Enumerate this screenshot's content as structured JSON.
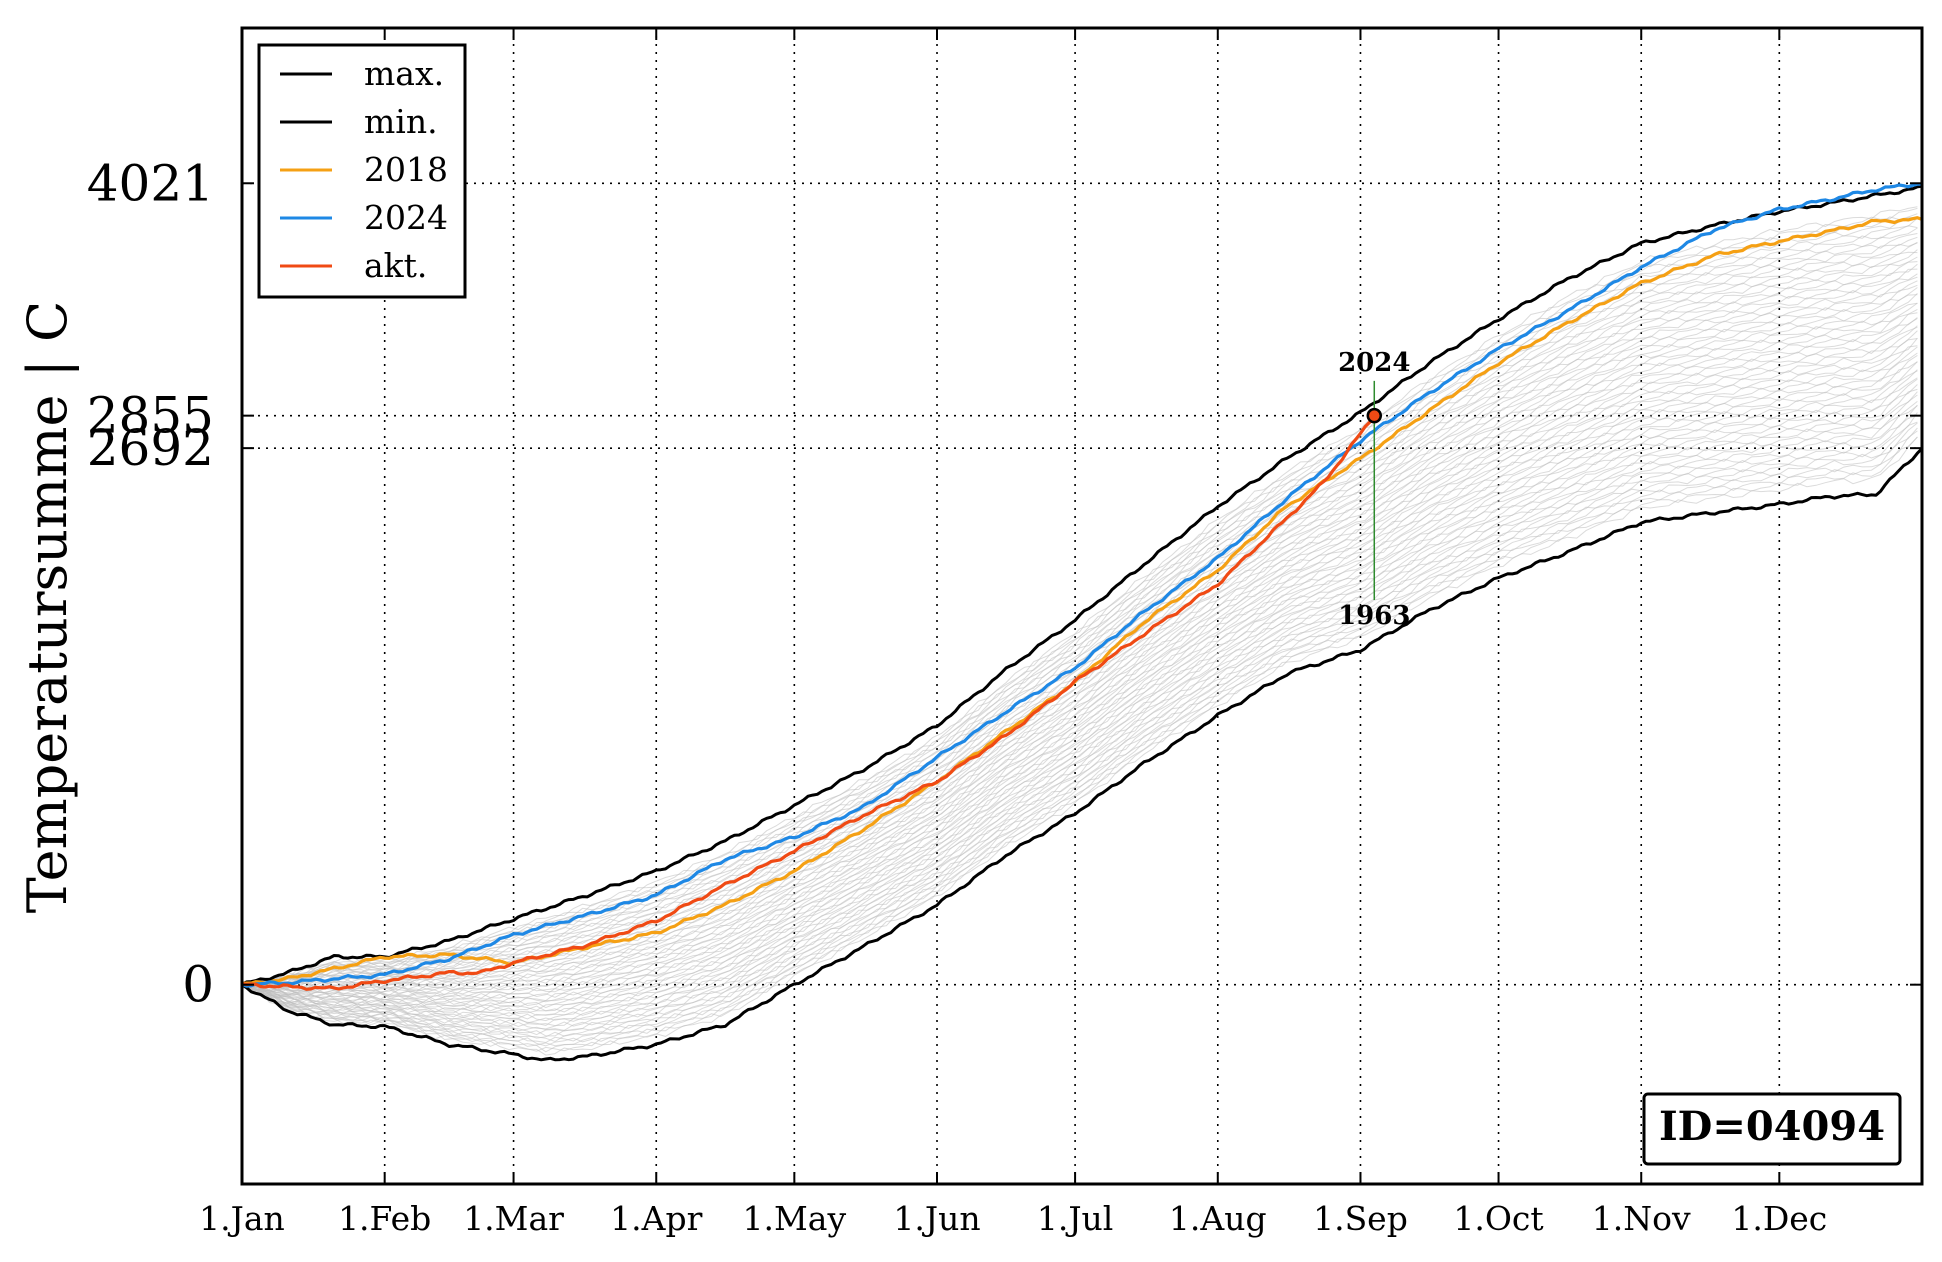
{
  "chart_data": {
    "type": "line",
    "ylabel": "Temperatursumme | C",
    "xlabel": "",
    "x_tick_labels": [
      "1.Jan",
      "1.Feb",
      "1.Mar",
      "1.Apr",
      "1.May",
      "1.Jun",
      "1.Jul",
      "1.Aug",
      "1.Sep",
      "1.Oct",
      "1.Nov",
      "1.Dec"
    ],
    "x_tick_days": [
      0,
      31,
      59,
      90,
      120,
      151,
      181,
      212,
      243,
      273,
      304,
      334
    ],
    "xlim": [
      0,
      365
    ],
    "ylim": [
      -1000,
      4800
    ],
    "y_ticks": [
      0,
      2692,
      2855,
      4021
    ],
    "y_tick_labels": [
      "0",
      "2692",
      "2855",
      "4021"
    ],
    "grid": true,
    "legend_position": "top-left",
    "colors": {
      "max": "#000000",
      "min": "#000000",
      "2018": "#f5a014",
      "2024": "#1e88e5",
      "akt": "#f04a14",
      "history": "#bdbdbd",
      "marker_line": "#2e8b2e"
    },
    "series": [
      {
        "name": "max.",
        "key": "max",
        "x": [
          0,
          10,
          20,
          31,
          45,
          59,
          75,
          90,
          105,
          120,
          135,
          151,
          166,
          181,
          196,
          212,
          227,
          243,
          258,
          273,
          288,
          304,
          320,
          334,
          345,
          355,
          365
        ],
        "y": [
          0,
          60,
          140,
          140,
          220,
          330,
          450,
          570,
          720,
          900,
          1080,
          1300,
          1580,
          1830,
          2110,
          2400,
          2640,
          2870,
          3120,
          3340,
          3540,
          3720,
          3810,
          3880,
          3920,
          3960,
          4000
        ]
      },
      {
        "name": "min.",
        "key": "min",
        "x": [
          0,
          10,
          20,
          31,
          45,
          59,
          66,
          75,
          90,
          105,
          120,
          135,
          151,
          166,
          181,
          196,
          212,
          227,
          243,
          258,
          273,
          288,
          304,
          320,
          334,
          345,
          355,
          365
        ],
        "y": [
          0,
          -130,
          -200,
          -210,
          -300,
          -350,
          -380,
          -360,
          -300,
          -200,
          0,
          190,
          400,
          650,
          860,
          1110,
          1350,
          1560,
          1680,
          1880,
          2040,
          2170,
          2320,
          2370,
          2410,
          2450,
          2460,
          2692
        ]
      },
      {
        "name": "2018",
        "key": "2018",
        "x": [
          0,
          10,
          20,
          31,
          45,
          59,
          75,
          90,
          105,
          120,
          135,
          151,
          166,
          181,
          196,
          212,
          227,
          243,
          258,
          273,
          288,
          304,
          320,
          334,
          345,
          355,
          365
        ],
        "y": [
          0,
          30,
          80,
          140,
          150,
          110,
          190,
          260,
          400,
          570,
          780,
          1020,
          1270,
          1520,
          1820,
          2080,
          2400,
          2640,
          2880,
          3120,
          3320,
          3520,
          3660,
          3730,
          3780,
          3830,
          3840
        ]
      },
      {
        "name": "2024",
        "key": "2024",
        "x": [
          0,
          10,
          20,
          31,
          45,
          59,
          75,
          90,
          105,
          120,
          135,
          151,
          166,
          181,
          196,
          212,
          227,
          243,
          258,
          273,
          288,
          304,
          320,
          334,
          345,
          355,
          365
        ],
        "y": [
          0,
          10,
          30,
          50,
          130,
          250,
          350,
          450,
          630,
          740,
          890,
          1140,
          1370,
          1590,
          1870,
          2140,
          2440,
          2730,
          2970,
          3190,
          3380,
          3600,
          3790,
          3890,
          3940,
          3990,
          4021
        ]
      },
      {
        "name": "akt.",
        "key": "akt",
        "x": [
          0,
          10,
          20,
          31,
          45,
          52,
          59,
          75,
          90,
          105,
          120,
          135,
          151,
          166,
          181,
          196,
          212,
          227,
          235,
          246
        ],
        "y": [
          0,
          -10,
          -20,
          20,
          60,
          60,
          110,
          200,
          320,
          500,
          670,
          850,
          1020,
          1250,
          1520,
          1760,
          2010,
          2340,
          2520,
          2855
        ]
      }
    ],
    "history_count": 60,
    "current_marker": {
      "x": 246,
      "y": 2855
    },
    "annotations": [
      {
        "text": "2024",
        "x": 246,
        "y": 3080
      },
      {
        "text": "1963",
        "x": 246,
        "y": 1810
      }
    ],
    "station_id": "ID=04094"
  }
}
